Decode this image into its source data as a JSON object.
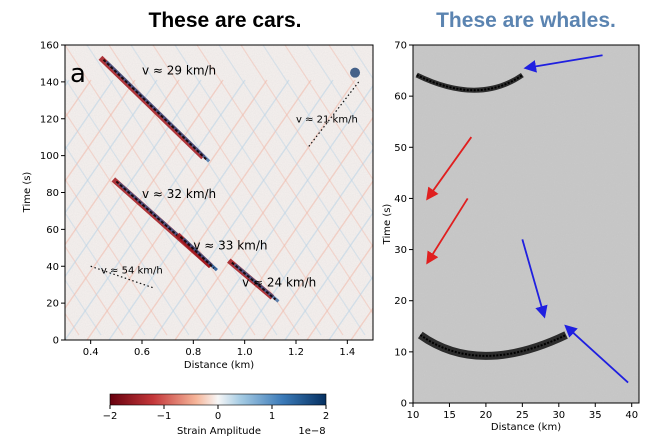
{
  "colors": {
    "cars_title": "#000000",
    "whales_title": "#5b84b1",
    "whale_arrow_blue": "#1f1fe0",
    "whale_arrow_red": "#e01f1f",
    "strain_negative": "#7a0c10",
    "strain_positive": "#1f4f86"
  },
  "chart_data": [
    {
      "type": "heatmap",
      "title": "These are cars.",
      "panel_label": "a",
      "xlabel": "Distance (km)",
      "ylabel": "Time (s)",
      "xlim": [
        0.3,
        1.5
      ],
      "ylim": [
        0,
        160
      ],
      "xticks": [
        "0.4",
        "0.6",
        "0.8",
        "1.0",
        "1.2",
        "1.4"
      ],
      "yticks": [
        "0",
        "20",
        "40",
        "60",
        "80",
        "100",
        "120",
        "140",
        "160"
      ],
      "colorbar": {
        "label": "Strain Amplitude",
        "scale": "1e−8",
        "range": [
          -2,
          2
        ],
        "ticks": [
          "−2",
          "−1",
          "0",
          "1",
          "2"
        ]
      },
      "vehicle_tracks": [
        {
          "speed_label": "v ≈ 29 km/h",
          "distance_km": [
            0.45,
            0.85
          ],
          "time_s": [
            152,
            98
          ]
        },
        {
          "speed_label": "v ≈ 21 km/h",
          "distance_km": [
            1.25,
            1.45
          ],
          "time_s": [
            105,
            141
          ]
        },
        {
          "speed_label": "v ≈ 32 km/h",
          "distance_km": [
            0.5,
            0.88
          ],
          "time_s": [
            86,
            39
          ]
        },
        {
          "speed_label": "v ≈ 33 km/h",
          "distance_km": [
            0.75,
            0.88
          ],
          "time_s": [
            56,
            39
          ]
        },
        {
          "speed_label": "v ≈ 54 km/h",
          "distance_km": [
            0.4,
            0.65
          ],
          "time_s": [
            40,
            28
          ]
        },
        {
          "speed_label": "v ≈ 24 km/h",
          "distance_km": [
            0.95,
            1.12
          ],
          "time_s": [
            42,
            22
          ]
        }
      ]
    },
    {
      "type": "heatmap",
      "title": "These are whales.",
      "xlabel": "Distance (km)",
      "ylabel": "Time (s)",
      "xlim": [
        10,
        41
      ],
      "ylim": [
        0,
        70
      ],
      "xticks": [
        "10",
        "15",
        "20",
        "25",
        "30",
        "35",
        "40"
      ],
      "yticks": [
        "0",
        "10",
        "20",
        "30",
        "40",
        "50",
        "60",
        "70"
      ],
      "colormap": "gray",
      "arrivals": [
        {
          "apex_distance_km": 19,
          "apex_time_s": 61,
          "span_km": [
            10.5,
            25
          ]
        },
        {
          "apex_distance_km": 19,
          "apex_time_s": 9,
          "span_km": [
            11,
            31
          ]
        }
      ],
      "arrows": [
        {
          "color": "blue",
          "from": [
            36,
            68
          ],
          "to": [
            25.5,
            65.5
          ]
        },
        {
          "color": "red",
          "from": [
            18,
            52
          ],
          "to": [
            12,
            40
          ]
        },
        {
          "color": "red",
          "from": [
            17.5,
            40
          ],
          "to": [
            12,
            27.5
          ]
        },
        {
          "color": "blue",
          "from": [
            25,
            32
          ],
          "to": [
            28,
            17
          ]
        },
        {
          "color": "blue",
          "from": [
            39.5,
            4
          ],
          "to": [
            31,
            15
          ]
        }
      ]
    }
  ]
}
